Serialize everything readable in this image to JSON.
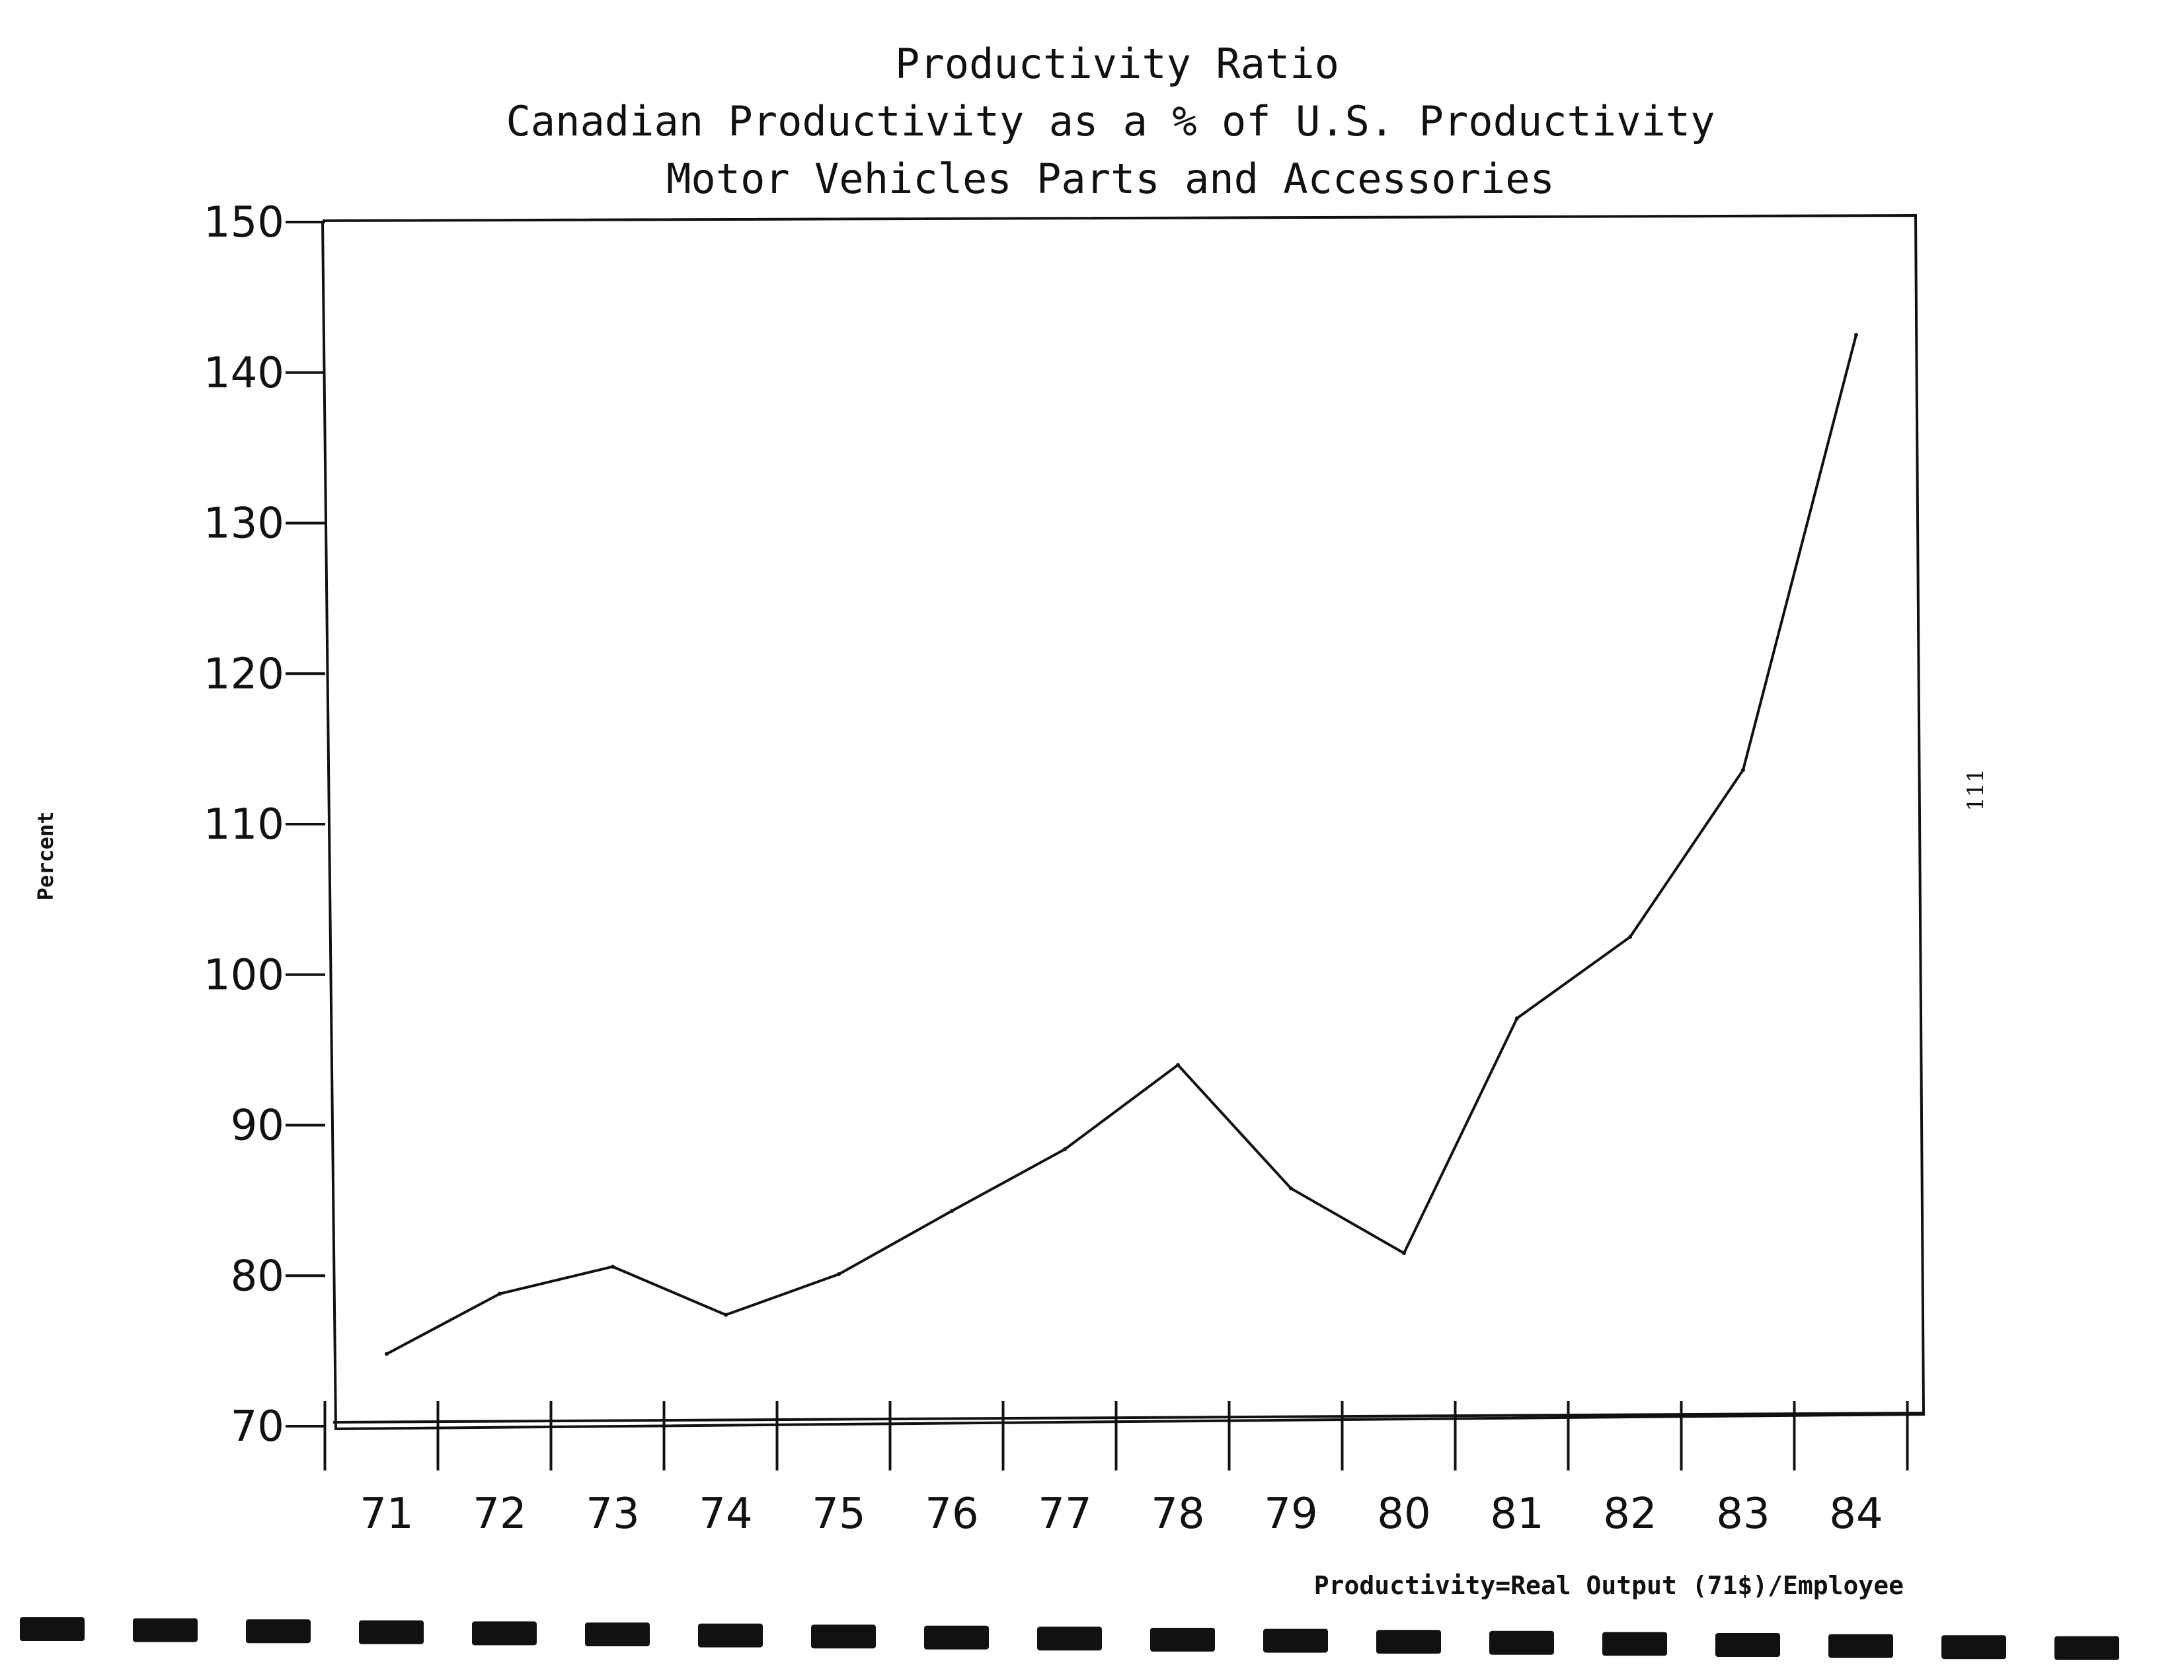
{
  "chart_data": {
    "type": "line",
    "title_lines": [
      "Productivity Ratio",
      "Canadian Productivity as a % of U.S. Productivity",
      "Motor Vehicles Parts and Accessories"
    ],
    "xlabel": "",
    "ylabel": "Percent",
    "note": "Productivity=Real Output (71$)/Employee",
    "categories": [
      "71",
      "72",
      "73",
      "74",
      "75",
      "76",
      "77",
      "78",
      "79",
      "80",
      "81",
      "82",
      "83",
      "84"
    ],
    "series": [
      {
        "values": [
          74.8,
          78.8,
          80.6,
          77.4,
          80.1,
          84.3,
          88.4,
          94,
          85.8,
          81.5,
          97.1,
          102.5,
          113.6,
          142.5
        ]
      }
    ],
    "yticks": [
      70,
      80,
      90,
      100,
      110,
      120,
      130,
      140,
      150
    ],
    "ylim": [
      70,
      150
    ],
    "grid": false,
    "legend": "none"
  },
  "page_number": "111",
  "colors": {
    "ink": "#111111",
    "background": "#ffffff"
  }
}
